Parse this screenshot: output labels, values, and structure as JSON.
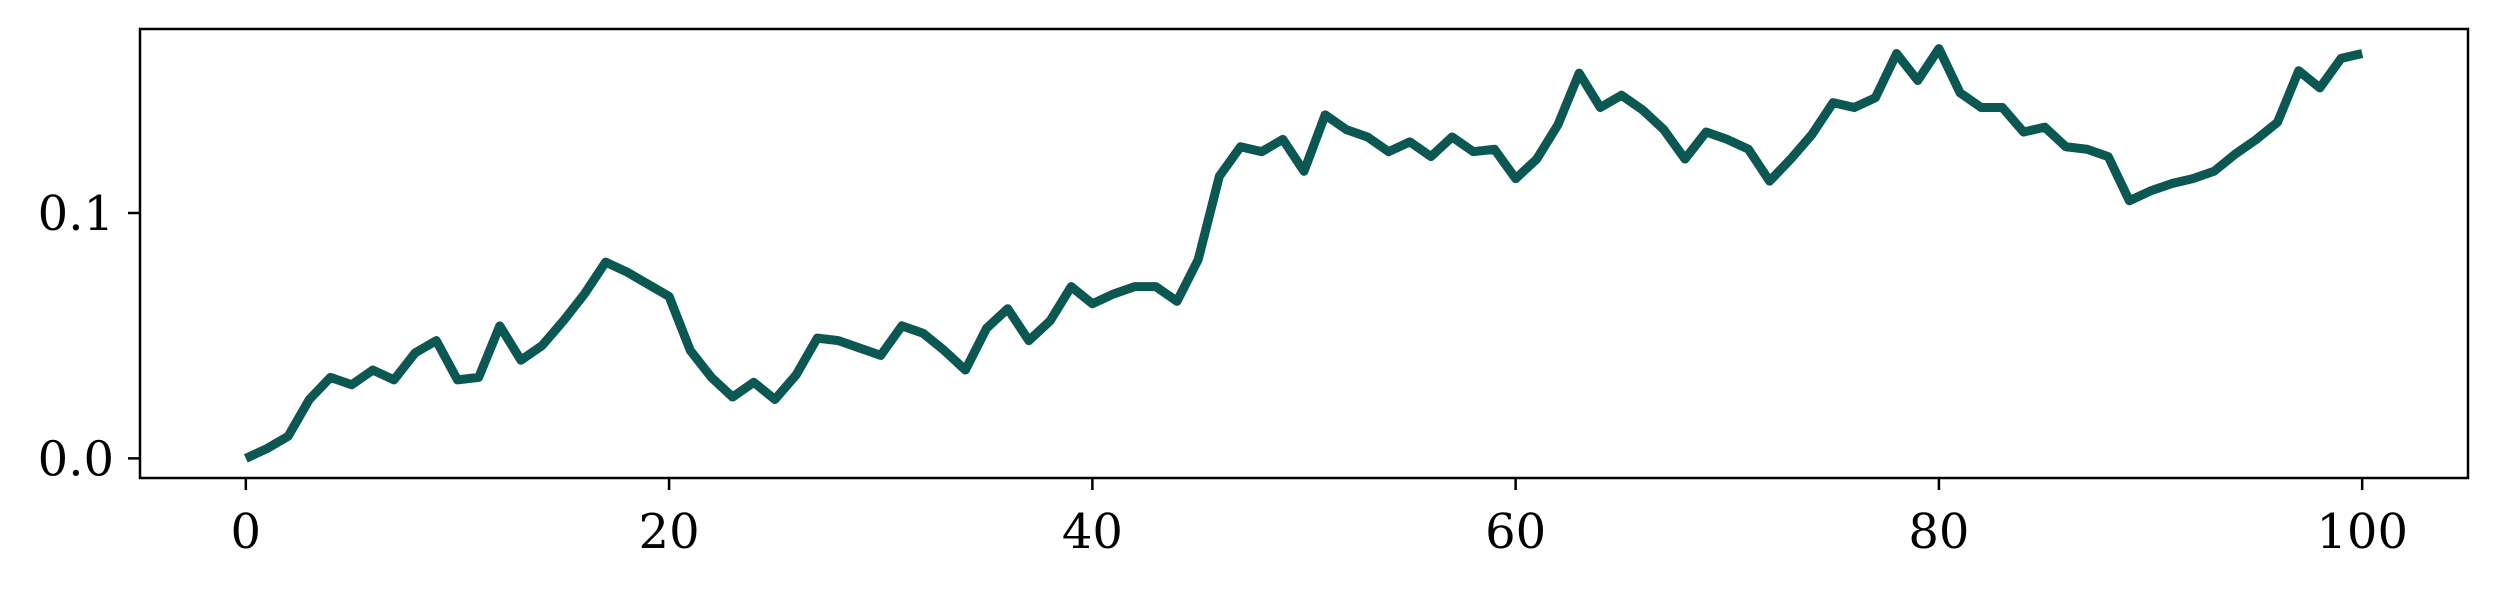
{
  "chart_data": {
    "type": "line",
    "title": "",
    "xlabel": "",
    "ylabel": "",
    "xlim": [
      -5,
      105
    ],
    "ylim": [
      -0.008,
      0.175
    ],
    "xticks": [
      0,
      20,
      40,
      60,
      80,
      100
    ],
    "xtick_labels": [
      "0",
      "20",
      "40",
      "60",
      "80",
      "100"
    ],
    "yticks": [
      0.0,
      0.1
    ],
    "ytick_labels": [
      "0.0",
      "0.1"
    ],
    "grid": false,
    "legend": "none",
    "series": [
      {
        "color": "#0b5752",
        "x": [
          0,
          1,
          2,
          3,
          4,
          5,
          6,
          7,
          8,
          9,
          10,
          11,
          12,
          13,
          14,
          15,
          16,
          17,
          18,
          19,
          20,
          21,
          22,
          23,
          24,
          25,
          26,
          27,
          28,
          29,
          30,
          31,
          32,
          33,
          34,
          35,
          36,
          37,
          38,
          39,
          40,
          41,
          42,
          43,
          44,
          45,
          46,
          47,
          48,
          49,
          50,
          51,
          52,
          53,
          54,
          55,
          56,
          57,
          58,
          59,
          60,
          61,
          62,
          63,
          64,
          65,
          66,
          67,
          68,
          69,
          70,
          71,
          72,
          73,
          74,
          75,
          76,
          77,
          78,
          79,
          80,
          81,
          82,
          83,
          84,
          85,
          86,
          87,
          88,
          89,
          90,
          91,
          92,
          93,
          94,
          95,
          96,
          97,
          98,
          99,
          100
        ],
        "y": [
          0.0,
          0.004,
          0.009,
          0.024,
          0.033,
          0.03,
          0.036,
          0.032,
          0.043,
          0.048,
          0.032,
          0.033,
          0.054,
          0.04,
          0.046,
          0.056,
          0.067,
          0.08,
          0.076,
          0.071,
          0.066,
          0.044,
          0.033,
          0.025,
          0.031,
          0.024,
          0.034,
          0.049,
          0.048,
          0.045,
          0.042,
          0.054,
          0.051,
          0.044,
          0.036,
          0.053,
          0.061,
          0.048,
          0.056,
          0.07,
          0.063,
          0.067,
          0.07,
          0.07,
          0.064,
          0.081,
          0.115,
          0.127,
          0.125,
          0.13,
          0.117,
          0.14,
          0.134,
          0.131,
          0.125,
          0.129,
          0.123,
          0.131,
          0.125,
          0.126,
          0.114,
          0.122,
          0.136,
          0.157,
          0.143,
          0.148,
          0.142,
          0.134,
          0.122,
          0.133,
          0.13,
          0.126,
          0.113,
          0.122,
          0.132,
          0.145,
          0.143,
          0.147,
          0.165,
          0.154,
          0.167,
          0.149,
          0.143,
          0.143,
          0.133,
          0.135,
          0.127,
          0.126,
          0.123,
          0.105,
          0.109,
          0.112,
          0.114,
          0.117,
          0.124,
          0.13,
          0.137,
          0.158,
          0.151,
          0.163,
          0.165
        ]
      }
    ]
  }
}
